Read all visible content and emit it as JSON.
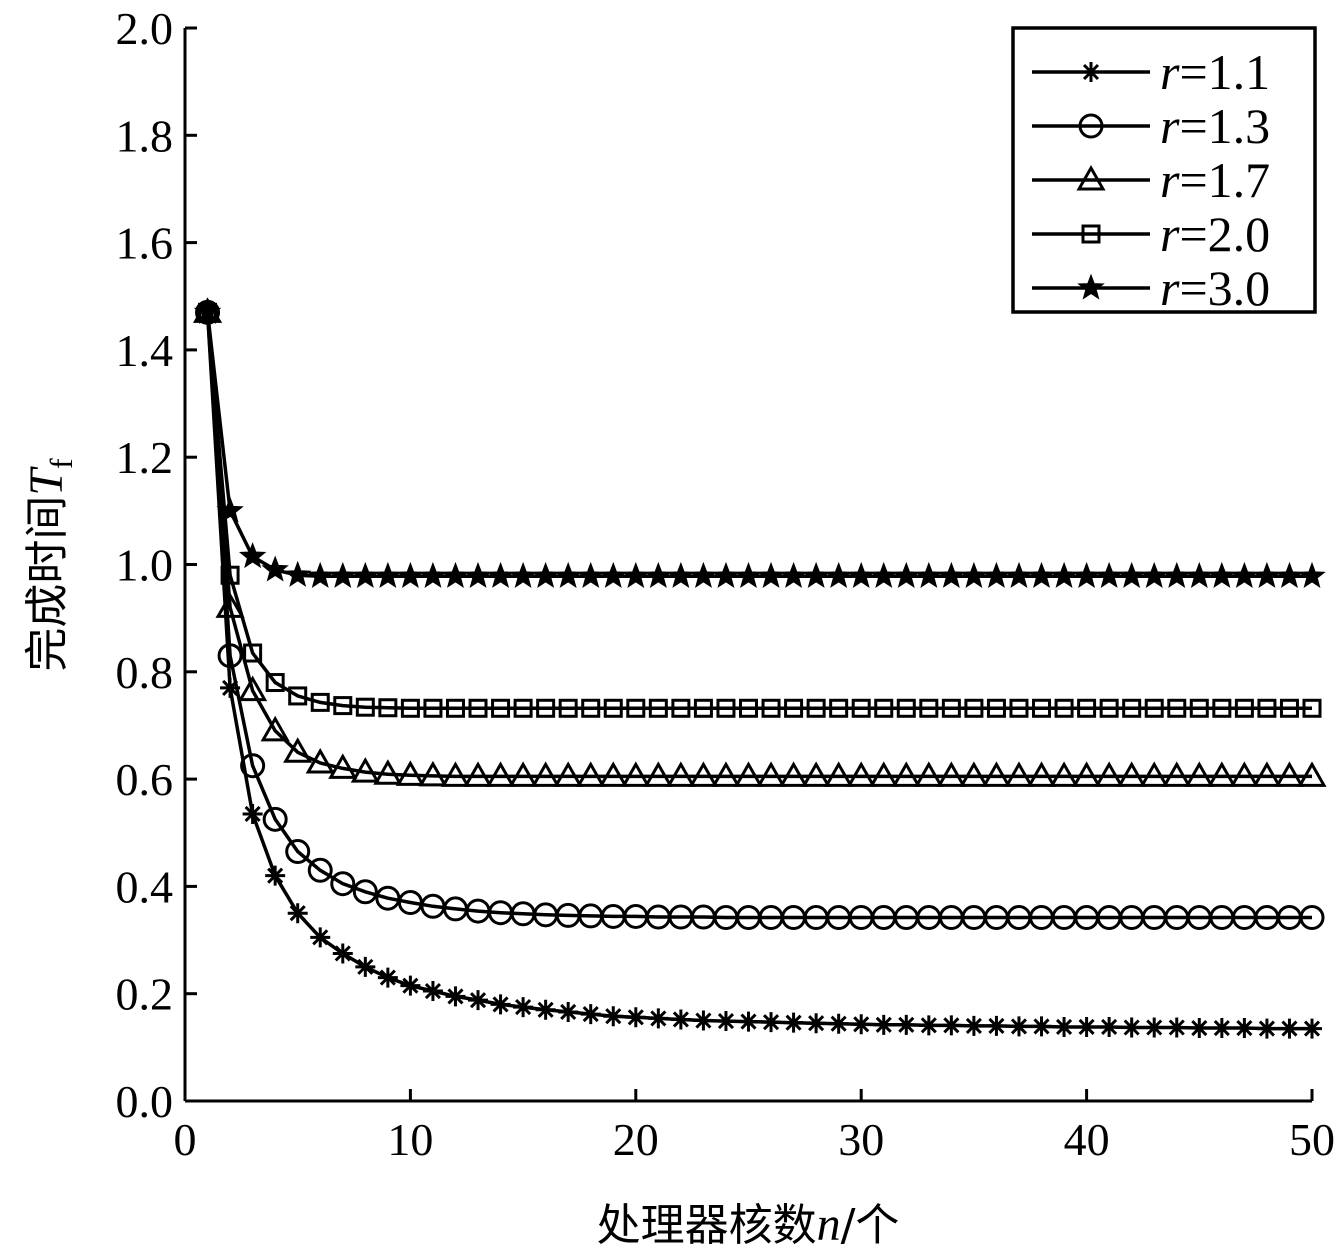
{
  "chart_data": {
    "type": "line",
    "xlabel": {
      "prefix": "处理器核数",
      "var": "n",
      "suffix": "/个"
    },
    "ylabel": {
      "prefix": "完成时间",
      "var": "T",
      "sub": "f"
    },
    "xlim": [
      0,
      50
    ],
    "ylim": [
      0.0,
      2.0
    ],
    "xticks": [
      "0",
      "10",
      "20",
      "30",
      "40",
      "50"
    ],
    "yticks": [
      "0.0",
      "0.2",
      "0.4",
      "0.6",
      "0.8",
      "1.0",
      "1.2",
      "1.4",
      "1.6",
      "1.8",
      "2.0"
    ],
    "grid": false,
    "legend_position": "top-right",
    "x": [
      1,
      2,
      3,
      4,
      5,
      6,
      7,
      8,
      9,
      10,
      11,
      12,
      13,
      14,
      15,
      16,
      17,
      18,
      19,
      20,
      21,
      22,
      23,
      24,
      25,
      26,
      27,
      28,
      29,
      30,
      31,
      32,
      33,
      34,
      35,
      36,
      37,
      38,
      39,
      40,
      41,
      42,
      43,
      44,
      45,
      46,
      47,
      48,
      49,
      50
    ],
    "series": [
      {
        "name": "r=1.1",
        "marker": "asterisk",
        "values": [
          1.47,
          0.77,
          0.535,
          0.42,
          0.35,
          0.305,
          0.275,
          0.25,
          0.23,
          0.215,
          0.205,
          0.195,
          0.188,
          0.18,
          0.175,
          0.17,
          0.166,
          0.162,
          0.158,
          0.156,
          0.154,
          0.152,
          0.15,
          0.149,
          0.148,
          0.147,
          0.146,
          0.145,
          0.144,
          0.143,
          0.142,
          0.142,
          0.141,
          0.141,
          0.14,
          0.14,
          0.139,
          0.139,
          0.138,
          0.138,
          0.138,
          0.137,
          0.137,
          0.137,
          0.136,
          0.136,
          0.136,
          0.135,
          0.135,
          0.135
        ]
      },
      {
        "name": "r=1.3",
        "marker": "circle",
        "values": [
          1.47,
          0.83,
          0.625,
          0.525,
          0.465,
          0.43,
          0.405,
          0.39,
          0.378,
          0.37,
          0.363,
          0.358,
          0.354,
          0.351,
          0.349,
          0.347,
          0.346,
          0.345,
          0.344,
          0.344,
          0.343,
          0.343,
          0.343,
          0.342,
          0.342,
          0.342,
          0.342,
          0.342,
          0.342,
          0.342,
          0.342,
          0.342,
          0.342,
          0.342,
          0.342,
          0.342,
          0.342,
          0.342,
          0.342,
          0.342,
          0.342,
          0.342,
          0.342,
          0.342,
          0.342,
          0.342,
          0.342,
          0.342,
          0.342,
          0.342
        ]
      },
      {
        "name": "r=1.7",
        "marker": "triangle",
        "values": [
          1.47,
          0.92,
          0.765,
          0.69,
          0.65,
          0.63,
          0.62,
          0.613,
          0.609,
          0.607,
          0.606,
          0.605,
          0.605,
          0.605,
          0.605,
          0.605,
          0.605,
          0.605,
          0.605,
          0.605,
          0.605,
          0.605,
          0.605,
          0.605,
          0.605,
          0.605,
          0.605,
          0.605,
          0.605,
          0.605,
          0.605,
          0.605,
          0.605,
          0.605,
          0.605,
          0.605,
          0.605,
          0.605,
          0.605,
          0.605,
          0.605,
          0.605,
          0.605,
          0.605,
          0.605,
          0.605,
          0.605,
          0.605,
          0.605,
          0.605
        ]
      },
      {
        "name": "r=2.0",
        "marker": "square",
        "values": [
          1.47,
          0.98,
          0.835,
          0.78,
          0.755,
          0.743,
          0.737,
          0.734,
          0.733,
          0.732,
          0.732,
          0.732,
          0.732,
          0.732,
          0.732,
          0.732,
          0.732,
          0.732,
          0.732,
          0.732,
          0.732,
          0.732,
          0.732,
          0.732,
          0.732,
          0.732,
          0.732,
          0.732,
          0.732,
          0.732,
          0.732,
          0.732,
          0.732,
          0.732,
          0.732,
          0.732,
          0.732,
          0.732,
          0.732,
          0.732,
          0.732,
          0.732,
          0.732,
          0.732,
          0.732,
          0.732,
          0.732,
          0.732,
          0.732,
          0.732
        ]
      },
      {
        "name": "r=3.0",
        "marker": "star",
        "values": [
          1.47,
          1.1,
          1.015,
          0.99,
          0.98,
          0.978,
          0.978,
          0.978,
          0.978,
          0.978,
          0.978,
          0.978,
          0.978,
          0.978,
          0.978,
          0.978,
          0.978,
          0.978,
          0.978,
          0.978,
          0.978,
          0.978,
          0.978,
          0.978,
          0.978,
          0.978,
          0.978,
          0.978,
          0.978,
          0.978,
          0.978,
          0.978,
          0.978,
          0.978,
          0.978,
          0.978,
          0.978,
          0.978,
          0.978,
          0.978,
          0.978,
          0.978,
          0.978,
          0.978,
          0.978,
          0.978,
          0.978,
          0.978,
          0.978,
          0.978
        ]
      }
    ]
  }
}
